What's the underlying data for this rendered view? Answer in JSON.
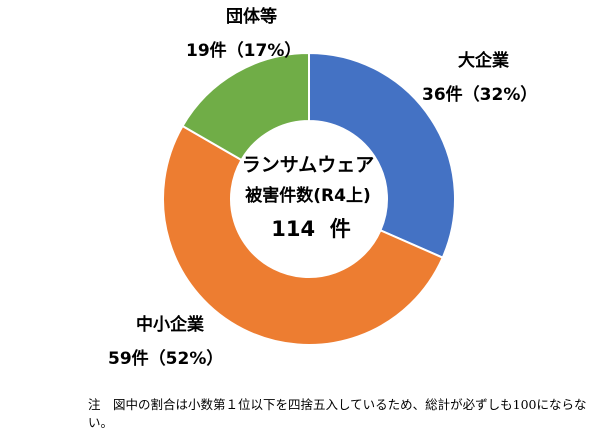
{
  "chart_data": {
    "type": "pie",
    "variant": "donut",
    "center": {
      "title": "ランサムウェア",
      "subtitle": "被害件数(R4上)",
      "total_value": "114",
      "total_unit": "件",
      "total": 114
    },
    "slices": [
      {
        "name": "大企業",
        "value": 36,
        "percent": 32,
        "count_label": "36件（32%）",
        "color": "#4472C4"
      },
      {
        "name": "中小企業",
        "value": 59,
        "percent": 52,
        "count_label": "59件（52%）",
        "color": "#ED7D31"
      },
      {
        "name": "団体等",
        "value": 19,
        "percent": 17,
        "count_label": "19件（17%）",
        "color": "#70AD47"
      }
    ],
    "legend": "none"
  },
  "footnote": "注　図中の割合は小数第１位以下を四捨五入しているため、総計が必ずしも100にならない。"
}
